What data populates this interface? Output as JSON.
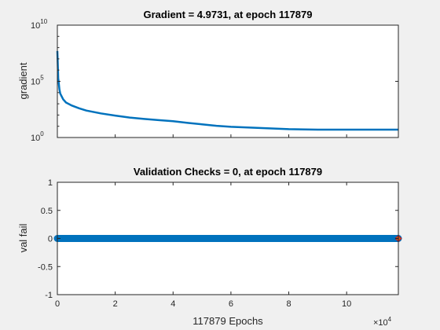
{
  "chart_data": [
    {
      "type": "line",
      "title": "Gradient = 4.9731, at epoch 117879",
      "xlabel": "",
      "ylabel": "gradient",
      "yscale": "log",
      "ylim": [
        1,
        10000000000
      ],
      "xlim": [
        0,
        117879
      ],
      "y_ticks": [
        {
          "base": "10",
          "exp": "0"
        },
        {
          "base": "10",
          "exp": "5"
        },
        {
          "base": "10",
          "exp": "10"
        }
      ],
      "grid": false,
      "color": "#0072BD",
      "series": [
        {
          "x": [
            0,
            300,
            700,
            1000,
            2000,
            3000,
            5000,
            7500,
            10000,
            15000,
            20000,
            25000,
            30000,
            35000,
            40000,
            45000,
            50000,
            55000,
            60000,
            70000,
            80000,
            90000,
            100000,
            110000,
            117879
          ],
          "y": [
            50000000,
            200000,
            20000,
            8000,
            2500,
            1300,
            700,
            400,
            250,
            140,
            90,
            60,
            45,
            35,
            28,
            20,
            15,
            11,
            9,
            7,
            5.5,
            5,
            5,
            5,
            4.9731
          ]
        }
      ]
    },
    {
      "type": "line",
      "title": "Validation Checks = 0, at epoch 117879",
      "xlabel": "117879 Epochs",
      "ylabel": "val fail",
      "ylim": [
        -1,
        1
      ],
      "xlim": [
        0,
        117879
      ],
      "x_ticks": [
        "0",
        "2",
        "4",
        "6",
        "8",
        "10"
      ],
      "x_tick_values": [
        0,
        20000,
        40000,
        60000,
        80000,
        100000
      ],
      "x_multiplier": {
        "base": "×10",
        "exp": "4"
      },
      "y_ticks": [
        "-1",
        "-0.5",
        "0",
        "0.5",
        "1"
      ],
      "y_tick_values": [
        -1,
        -0.5,
        0,
        0.5,
        1
      ],
      "grid": false,
      "color": "#0072BD",
      "marker_color": "#D95319",
      "series": [
        {
          "x": [
            0,
            117879
          ],
          "y": [
            0,
            0
          ]
        }
      ],
      "final_point": {
        "x": 117879,
        "y": 0
      }
    }
  ]
}
